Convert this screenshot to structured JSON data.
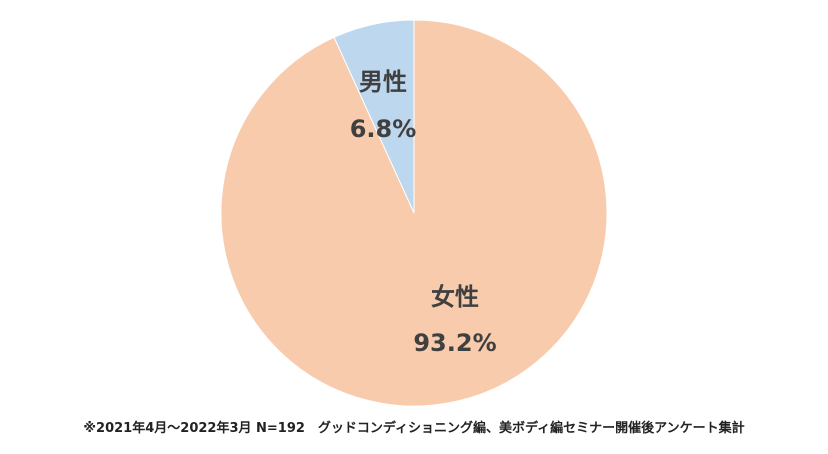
{
  "chart_data": {
    "type": "pie",
    "categories": [
      "男性",
      "女性"
    ],
    "values": [
      6.8,
      93.2
    ],
    "value_labels": [
      "6.8%",
      "93.2%"
    ],
    "colors": [
      "#bdd7ee",
      "#f8cbad"
    ],
    "start_angle_deg": 0,
    "direction": "counterclockwise",
    "legend": "none",
    "title": ""
  },
  "footnote": "※2021年4月～2022年3月 N=192　グッドコンディショニング編、美ボディ編セミナー開催後アンケート集計"
}
